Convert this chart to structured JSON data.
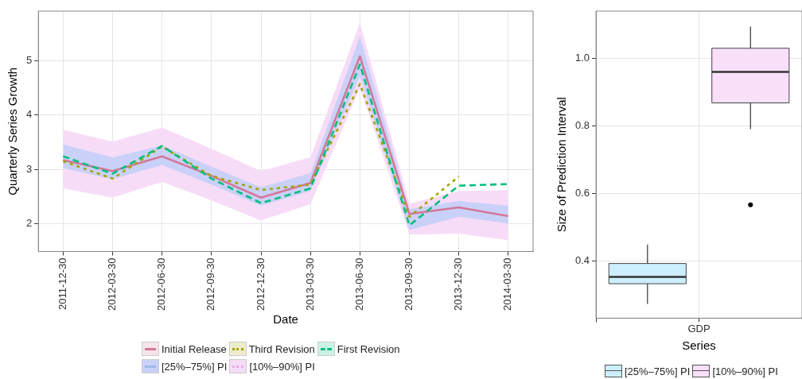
{
  "chart_data": [
    {
      "type": "line",
      "xlabel": "Date",
      "ylabel": "Quarterly Series Growth",
      "categories": [
        "2011-12-30",
        "2012-03-30",
        "2012-06-30",
        "2012-09-30",
        "2012-12-30",
        "2013-03-30",
        "2013-06-30",
        "2013-09-30",
        "2013-12-30",
        "2014-03-30"
      ],
      "ylim": [
        1.49,
        5.91
      ],
      "yticks": [
        2,
        3,
        4,
        5
      ],
      "grid": true,
      "legend": "bottom",
      "series": [
        {
          "name": "[10%–90%] PI",
          "type": "area",
          "color": "#f7dcf7",
          "line_style": "dotted",
          "values": [
            null,
            null,
            null,
            null,
            null,
            null,
            null,
            null,
            null,
            null
          ],
          "lower": [
            2.65,
            2.48,
            2.77,
            2.43,
            2.06,
            2.36,
            4.5,
            1.8,
            1.82,
            1.7
          ],
          "upper": [
            3.73,
            3.51,
            3.77,
            3.38,
            2.97,
            3.22,
            5.7,
            2.37,
            2.6,
            2.62
          ]
        },
        {
          "name": "[25%–75%] PI",
          "type": "area",
          "color": "#cad1f8",
          "line_style": "solid",
          "values": [
            null,
            null,
            null,
            null,
            null,
            null,
            null,
            null,
            null,
            null
          ],
          "lower": [
            3.02,
            2.82,
            3.08,
            2.72,
            2.33,
            2.6,
            4.72,
            1.88,
            2.13,
            2.0
          ],
          "upper": [
            3.46,
            3.22,
            3.44,
            3.05,
            2.67,
            2.93,
            5.45,
            2.27,
            2.42,
            2.33
          ]
        },
        {
          "name": "Initial Release",
          "type": "line",
          "color": "#d4789a",
          "line_style": "solid",
          "values": [
            3.17,
            2.97,
            3.24,
            2.88,
            2.48,
            2.75,
            5.08,
            2.18,
            2.3,
            2.14
          ]
        },
        {
          "name": "Third Revision",
          "type": "line",
          "color": "#a3a500",
          "line_style": "dotted",
          "values": [
            3.15,
            2.83,
            3.42,
            2.88,
            2.62,
            2.72,
            4.57,
            2.13,
            2.87,
            null
          ]
        },
        {
          "name": "First Revision",
          "type": "line",
          "color": "#00bf7d",
          "line_style": "dashed",
          "values": [
            3.24,
            2.92,
            3.43,
            2.83,
            2.38,
            2.65,
            4.93,
            1.97,
            2.7,
            2.73
          ]
        }
      ]
    },
    {
      "type": "box",
      "xlabel": "Series",
      "ylabel": "Size of Prediction Interval",
      "categories": [
        null,
        null
      ],
      "annotations": [
        "GDP"
      ],
      "ylim": [
        0.23,
        1.14
      ],
      "yticks": [
        0.4,
        0.6,
        0.8,
        {
          "value": 1.0,
          "label": "1.0"
        }
      ],
      "grid": true,
      "legend": "bottom",
      "series": [
        {
          "name": "[25%–75%] PI",
          "color": "#ccefff",
          "boxes": [
            {
              "low": 0.272,
              "q1": 0.332,
              "median": 0.352,
              "q3": 0.392,
              "high": 0.448
            },
            null
          ]
        },
        {
          "name": "[10%–90%] PI",
          "color": "#f9e0f9",
          "boxes": [
            null,
            {
              "low": 0.79,
              "q1": 0.868,
              "median": 0.96,
              "q3": 1.03,
              "high": 1.094,
              "outliers": [
                0.566
              ]
            }
          ]
        }
      ]
    }
  ]
}
